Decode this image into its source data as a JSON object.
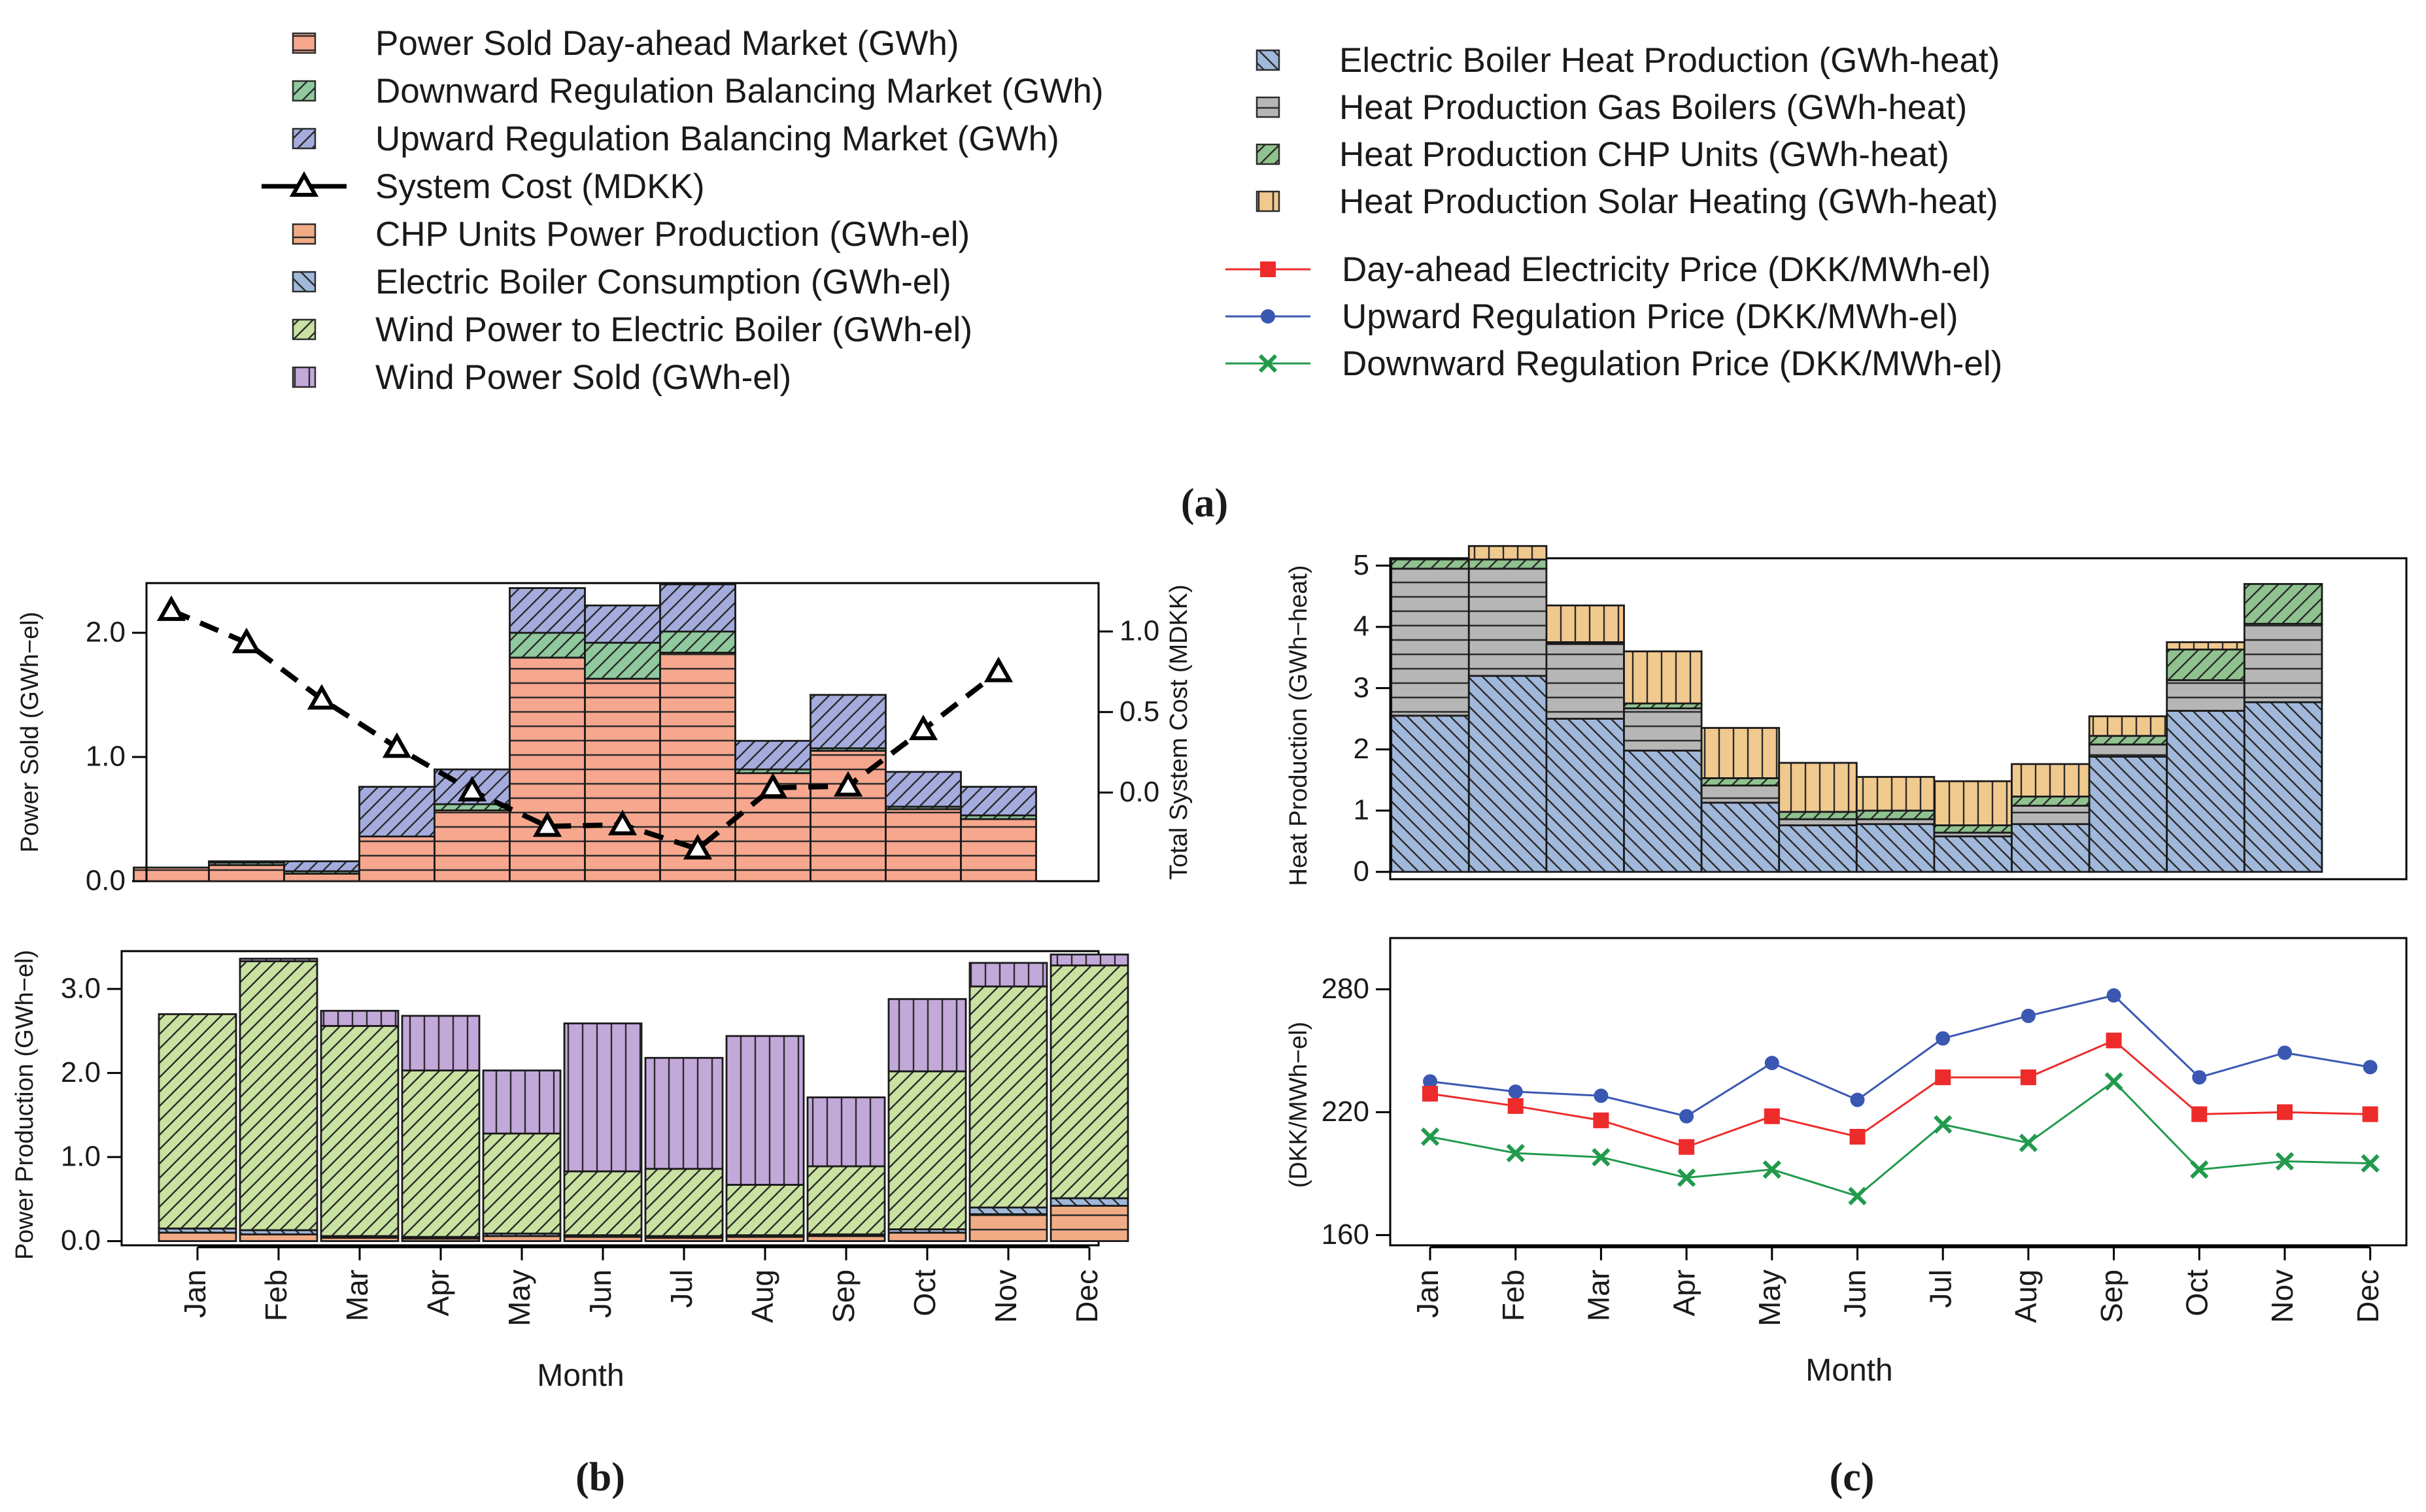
{
  "months": [
    "Jan",
    "Feb",
    "Mar",
    "Apr",
    "May",
    "Jun",
    "Jul",
    "Aug",
    "Sep",
    "Oct",
    "Nov",
    "Dec"
  ],
  "colors": {
    "salmon": "#f6a78e",
    "green": "#8fc99d",
    "blue": "#a4acde",
    "orange": "#f1ac86",
    "steel": "#a0b8da",
    "lime": "#c9e2a2",
    "purple": "#c3a8da",
    "grey": "#b6b6b6",
    "cgreen": "#8fc28f",
    "tan": "#f0c98f",
    "red": "#ee2b2b",
    "navy": "#3a58b2",
    "dgreen": "#219a4c"
  },
  "legend": {
    "left": [
      {
        "label": "Power Sold Day-ahead Market (GWh)",
        "icon": "swatch-horizontal-salmon"
      },
      {
        "label": "Downward Regulation Balancing Market (GWh)",
        "icon": "swatch-diagonal-green"
      },
      {
        "label": "Upward Regulation Balancing Market (GWh)",
        "icon": "swatch-diagonal-blue"
      },
      {
        "label": "System Cost (MDKK)",
        "icon": "triangle-line-icon"
      },
      {
        "label": "CHP Units Power Production (GWh-el)",
        "icon": "swatch-horizontal-orange"
      },
      {
        "label": "Electric Boiler Consumption (GWh-el)",
        "icon": "swatch-backslash-blue"
      },
      {
        "label": "Wind Power to Electric Boiler (GWh-el)",
        "icon": "swatch-diagonal-lime"
      },
      {
        "label": "Wind Power Sold (GWh-el)",
        "icon": "swatch-vertical-purple"
      }
    ],
    "right_top": [
      {
        "label": "Electric Boiler Heat Production (GWh-heat)",
        "icon": "swatch-backslash-blue"
      },
      {
        "label": "Heat Production Gas Boilers (GWh-heat)",
        "icon": "swatch-horizontal-grey"
      },
      {
        "label": "Heat Production CHP Units (GWh-heat)",
        "icon": "swatch-diagonal-green"
      },
      {
        "label": "Heat Production Solar Heating (GWh-heat)",
        "icon": "swatch-vertical-tan"
      }
    ],
    "right_bottom": [
      {
        "label": "Day-ahead Electricity Price (DKK/MWh-el)",
        "icon": "red-square-line-icon"
      },
      {
        "label": "Upward Regulation Price (DKK/MWh-el)",
        "icon": "blue-circle-line-icon"
      },
      {
        "label": "Downward Regulation Price (DKK/MWh-el)",
        "icon": "green-x-line-icon"
      }
    ]
  },
  "captions": {
    "a": "(a)",
    "b": "(b)",
    "c": "(c)"
  },
  "chart_data": [
    {
      "id": "power-sold",
      "type": "bar",
      "stacked": true,
      "categories": [
        "Jan",
        "Feb",
        "Mar",
        "Apr",
        "May",
        "Jun",
        "Jul",
        "Aug",
        "Sep",
        "Oct",
        "Nov",
        "Dec"
      ],
      "ylabel": "Power Sold (GWh−el)",
      "ylim": [
        0,
        2.4
      ],
      "yticks": [
        0,
        1,
        2
      ],
      "ytick_labels": [
        "0.0",
        "1.0",
        "2.0"
      ],
      "series": [
        {
          "name": "Power Sold Day-ahead Market (GWh)",
          "values": [
            0.11,
            0.13,
            0.06,
            0.36,
            0.57,
            1.8,
            1.63,
            1.84,
            0.87,
            1.05,
            0.58,
            0.5
          ]
        },
        {
          "name": "Downward Regulation Balancing Market (GWh)",
          "values": [
            0,
            0.02,
            0.02,
            0,
            0.05,
            0.2,
            0.29,
            0.17,
            0.03,
            0.02,
            0.02,
            0.03
          ]
        },
        {
          "name": "Upward Regulation Balancing Market (GWh)",
          "values": [
            0,
            0.01,
            0.08,
            0.4,
            0.28,
            0.36,
            0.3,
            0.38,
            0.23,
            0.43,
            0.28,
            0.23
          ]
        }
      ],
      "secondary": {
        "name": "System Cost (MDKK)",
        "ylabel": "Total System Cost (MDKK)",
        "ylim": [
          -0.55,
          1.3
        ],
        "yticks": [
          0,
          0.5,
          1
        ],
        "ytick_labels": [
          "0.0",
          "0.5",
          "1.0"
        ],
        "values": [
          1.13,
          0.93,
          0.58,
          0.28,
          0.01,
          -0.21,
          -0.2,
          -0.35,
          0.03,
          0.04,
          0.39,
          0.75
        ]
      }
    },
    {
      "id": "power-production",
      "type": "bar",
      "stacked": true,
      "categories": [
        "Jan",
        "Feb",
        "Mar",
        "Apr",
        "May",
        "Jun",
        "Jul",
        "Aug",
        "Sep",
        "Oct",
        "Nov",
        "Dec"
      ],
      "ylabel": "Power Production (GWh−el)",
      "xlabel": "Month",
      "ylim": [
        -0.05,
        3.45
      ],
      "yticks": [
        0,
        1,
        2,
        3
      ],
      "ytick_labels": [
        "0.0",
        "1.0",
        "2.0",
        "3.0"
      ],
      "series": [
        {
          "name": "CHP Units Power Production (GWh-el)",
          "values": [
            0.1,
            0.08,
            0.04,
            0.03,
            0.06,
            0.05,
            0.04,
            0.05,
            0.06,
            0.1,
            0.32,
            0.42
          ]
        },
        {
          "name": "Electric Boiler Consumption (GWh-el)",
          "values": [
            0.05,
            0.05,
            0.02,
            0.02,
            0.03,
            0.02,
            0.02,
            0.02,
            0.02,
            0.04,
            0.08,
            0.09
          ]
        },
        {
          "name": "Wind Power to Electric Boiler (GWh-el)",
          "values": [
            2.55,
            3.2,
            2.5,
            1.98,
            1.19,
            0.76,
            0.8,
            0.6,
            0.81,
            1.88,
            2.63,
            2.77
          ]
        },
        {
          "name": "Wind Power Sold (GWh-el)",
          "values": [
            0,
            0.03,
            0.18,
            0.65,
            0.75,
            1.76,
            1.32,
            1.77,
            0.82,
            0.86,
            0.28,
            0.13
          ]
        }
      ]
    },
    {
      "id": "heat-production",
      "type": "bar",
      "stacked": true,
      "categories": [
        "Jan",
        "Feb",
        "Mar",
        "Apr",
        "May",
        "Jun",
        "Jul",
        "Aug",
        "Sep",
        "Oct",
        "Nov",
        "Dec"
      ],
      "ylabel": "Heat Production (GWh−heat)",
      "ylim": [
        -0.12,
        5.12
      ],
      "yticks": [
        0,
        1,
        2,
        3,
        4,
        5
      ],
      "ytick_labels": [
        "0",
        "1",
        "2",
        "3",
        "4",
        "5"
      ],
      "series": [
        {
          "name": "Electric Boiler Heat Production (GWh-heat)",
          "values": [
            2.55,
            3.2,
            2.5,
            1.98,
            1.13,
            0.76,
            0.78,
            0.58,
            0.78,
            1.88,
            2.63,
            2.77
          ]
        },
        {
          "name": "Heat Production Gas Boilers (GWh-heat)",
          "values": [
            2.4,
            1.75,
            1.22,
            0.69,
            0.28,
            0.1,
            0.08,
            0.06,
            0.3,
            0.2,
            0.5,
            1.28
          ]
        },
        {
          "name": "Heat Production CHP Units (GWh-heat)",
          "values": [
            0.15,
            0.15,
            0.03,
            0.08,
            0.12,
            0.12,
            0.14,
            0.12,
            0.15,
            0.14,
            0.5,
            0.65
          ]
        },
        {
          "name": "Heat Production Solar Heating (GWh-heat)",
          "values": [
            0,
            0.22,
            0.6,
            0.85,
            0.82,
            0.8,
            0.55,
            0.72,
            0.53,
            0.32,
            0.12,
            0
          ]
        }
      ]
    },
    {
      "id": "prices",
      "type": "line",
      "categories": [
        "Jan",
        "Feb",
        "Mar",
        "Apr",
        "May",
        "Jun",
        "Jul",
        "Aug",
        "Sep",
        "Oct",
        "Nov",
        "Dec"
      ],
      "ylabel": "(DKK/MWh−el)",
      "xlabel": "Month",
      "ylim": [
        155,
        305
      ],
      "yticks": [
        160,
        220,
        280
      ],
      "ytick_labels": [
        "160",
        "220",
        "280"
      ],
      "series": [
        {
          "name": "Day-ahead Electricity Price (DKK/MWh-el)",
          "values": [
            229,
            223,
            216,
            203,
            218,
            208,
            237,
            237,
            255,
            219,
            220,
            219
          ]
        },
        {
          "name": "Upward Regulation Price (DKK/MWh-el)",
          "values": [
            235,
            230,
            228,
            218,
            244,
            226,
            256,
            267,
            277,
            237,
            249,
            242
          ]
        },
        {
          "name": "Downward Regulation Price (DKK/MWh-el)",
          "values": [
            208,
            200,
            198,
            188,
            192,
            179,
            214,
            205,
            235,
            192,
            196,
            195
          ]
        }
      ]
    }
  ]
}
